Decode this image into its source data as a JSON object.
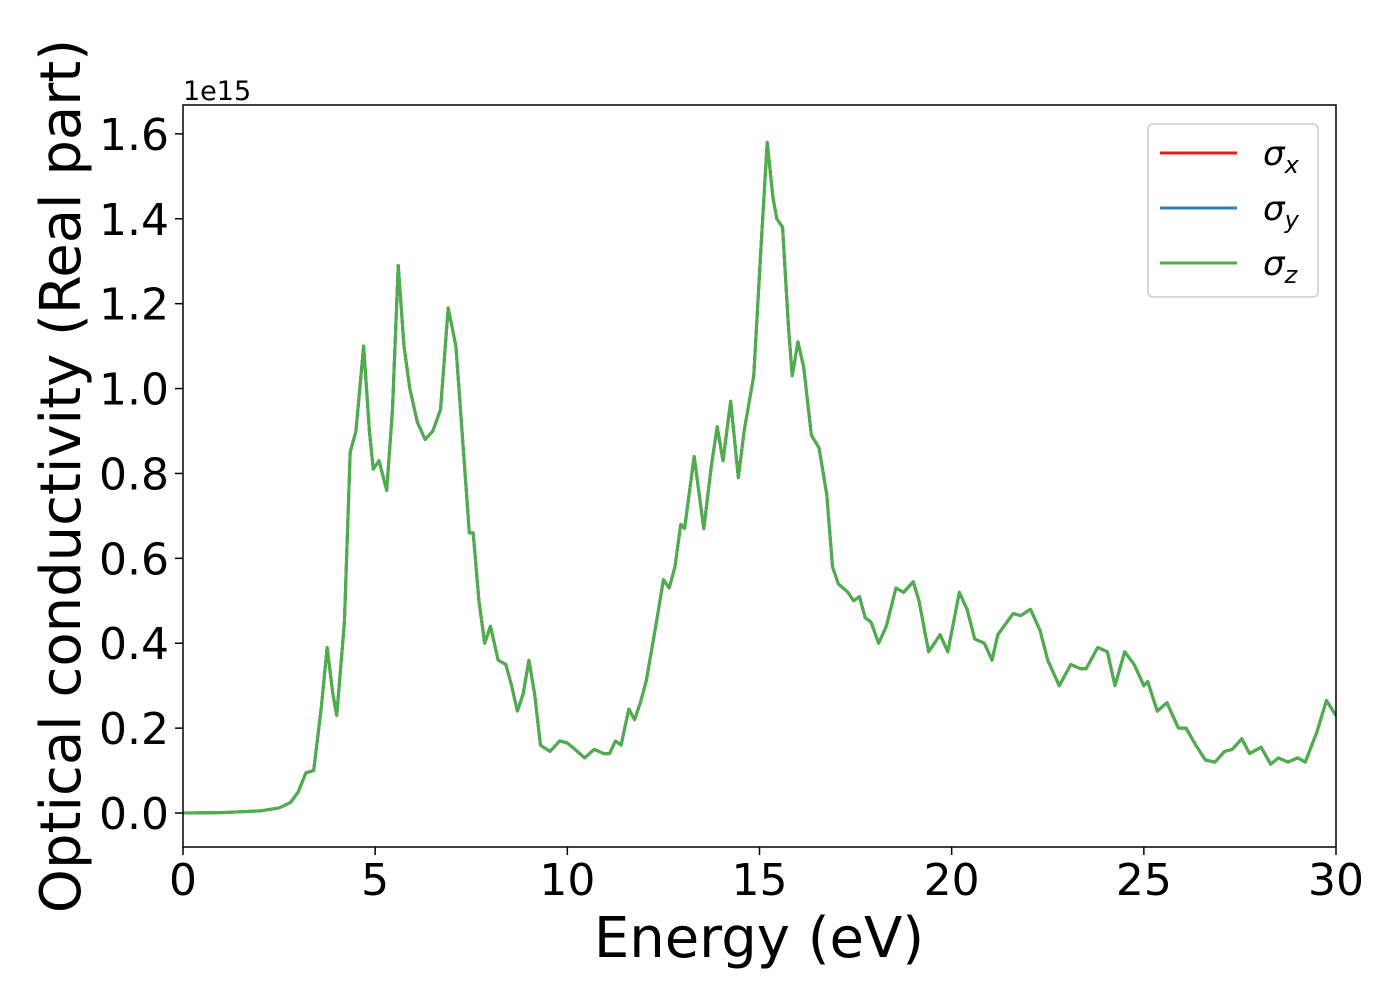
{
  "chart_data": {
    "type": "line",
    "xlabel": "Energy (eV)",
    "ylabel": "Optical conductivity (Real part)",
    "offset_text": "1e15",
    "x": [
      0,
      1,
      2,
      2.5,
      2.8,
      3.0,
      3.2,
      3.4,
      3.6,
      3.75,
      3.9,
      4.0,
      4.2,
      4.35,
      4.5,
      4.6,
      4.7,
      4.85,
      4.95,
      5.1,
      5.3,
      5.45,
      5.6,
      5.75,
      5.9,
      6.1,
      6.3,
      6.5,
      6.7,
      6.9,
      7.1,
      7.3,
      7.45,
      7.55,
      7.7,
      7.85,
      8.0,
      8.2,
      8.4,
      8.55,
      8.7,
      8.85,
      9.0,
      9.15,
      9.3,
      9.55,
      9.8,
      10.0,
      10.2,
      10.45,
      10.7,
      10.95,
      11.1,
      11.25,
      11.4,
      11.6,
      11.75,
      11.9,
      12.05,
      12.3,
      12.5,
      12.65,
      12.8,
      12.95,
      13.05,
      13.3,
      13.55,
      13.75,
      13.9,
      14.05,
      14.25,
      14.45,
      14.6,
      14.85,
      15.05,
      15.2,
      15.35,
      15.45,
      15.6,
      15.75,
      15.85,
      16.0,
      16.15,
      16.35,
      16.55,
      16.75,
      16.9,
      17.05,
      17.3,
      17.45,
      17.6,
      17.75,
      17.9,
      18.1,
      18.3,
      18.55,
      18.75,
      19.0,
      19.15,
      19.4,
      19.7,
      19.9,
      20.2,
      20.4,
      20.6,
      20.85,
      21.05,
      21.2,
      21.6,
      21.8,
      22.05,
      22.3,
      22.5,
      22.8,
      23.1,
      23.35,
      23.5,
      23.8,
      24.05,
      24.25,
      24.5,
      24.75,
      25.0,
      25.1,
      25.35,
      25.6,
      25.9,
      26.1,
      26.35,
      26.6,
      26.85,
      27.1,
      27.3,
      27.55,
      27.75,
      28.05,
      28.3,
      28.5,
      28.75,
      29.0,
      29.2,
      29.5,
      29.75,
      30
    ],
    "series": [
      {
        "name": "σx",
        "color": "#e41a1c",
        "values": [
          0,
          0.001,
          0.005,
          0.012,
          0.025,
          0.05,
          0.095,
          0.1,
          0.25,
          0.39,
          0.28,
          0.23,
          0.45,
          0.85,
          0.9,
          1.0,
          1.1,
          0.9,
          0.81,
          0.83,
          0.76,
          0.95,
          1.29,
          1.1,
          1.0,
          0.92,
          0.88,
          0.9,
          0.95,
          1.19,
          1.1,
          0.85,
          0.66,
          0.66,
          0.5,
          0.4,
          0.44,
          0.36,
          0.35,
          0.3,
          0.24,
          0.28,
          0.36,
          0.28,
          0.16,
          0.145,
          0.17,
          0.165,
          0.15,
          0.13,
          0.15,
          0.14,
          0.14,
          0.17,
          0.16,
          0.245,
          0.22,
          0.26,
          0.31,
          0.44,
          0.55,
          0.53,
          0.58,
          0.68,
          0.67,
          0.84,
          0.67,
          0.82,
          0.91,
          0.83,
          0.97,
          0.79,
          0.9,
          1.03,
          1.35,
          1.58,
          1.45,
          1.4,
          1.38,
          1.15,
          1.03,
          1.11,
          1.05,
          0.89,
          0.86,
          0.75,
          0.58,
          0.54,
          0.52,
          0.5,
          0.51,
          0.46,
          0.45,
          0.4,
          0.44,
          0.53,
          0.52,
          0.545,
          0.5,
          0.38,
          0.42,
          0.38,
          0.52,
          0.48,
          0.41,
          0.4,
          0.36,
          0.42,
          0.47,
          0.465,
          0.48,
          0.43,
          0.36,
          0.3,
          0.35,
          0.34,
          0.34,
          0.39,
          0.38,
          0.3,
          0.38,
          0.35,
          0.3,
          0.31,
          0.24,
          0.26,
          0.2,
          0.2,
          0.16,
          0.125,
          0.12,
          0.145,
          0.15,
          0.175,
          0.14,
          0.155,
          0.115,
          0.13,
          0.12,
          0.13,
          0.12,
          0.19,
          0.265,
          0.23
        ]
      },
      {
        "name": "σy",
        "color": "#377eb8",
        "values": [
          0,
          0.001,
          0.005,
          0.012,
          0.025,
          0.05,
          0.095,
          0.1,
          0.25,
          0.39,
          0.28,
          0.23,
          0.45,
          0.85,
          0.9,
          1.0,
          1.1,
          0.9,
          0.81,
          0.83,
          0.76,
          0.95,
          1.29,
          1.1,
          1.0,
          0.92,
          0.88,
          0.9,
          0.95,
          1.19,
          1.1,
          0.85,
          0.66,
          0.66,
          0.5,
          0.4,
          0.44,
          0.36,
          0.35,
          0.3,
          0.24,
          0.28,
          0.36,
          0.28,
          0.16,
          0.145,
          0.17,
          0.165,
          0.15,
          0.13,
          0.15,
          0.14,
          0.14,
          0.17,
          0.16,
          0.245,
          0.22,
          0.26,
          0.31,
          0.44,
          0.55,
          0.53,
          0.58,
          0.68,
          0.67,
          0.84,
          0.67,
          0.82,
          0.91,
          0.83,
          0.97,
          0.79,
          0.9,
          1.03,
          1.35,
          1.58,
          1.45,
          1.4,
          1.38,
          1.15,
          1.03,
          1.11,
          1.05,
          0.89,
          0.86,
          0.75,
          0.58,
          0.54,
          0.52,
          0.5,
          0.51,
          0.46,
          0.45,
          0.4,
          0.44,
          0.53,
          0.52,
          0.545,
          0.5,
          0.38,
          0.42,
          0.38,
          0.52,
          0.48,
          0.41,
          0.4,
          0.36,
          0.42,
          0.47,
          0.465,
          0.48,
          0.43,
          0.36,
          0.3,
          0.35,
          0.34,
          0.34,
          0.39,
          0.38,
          0.3,
          0.38,
          0.35,
          0.3,
          0.31,
          0.24,
          0.26,
          0.2,
          0.2,
          0.16,
          0.125,
          0.12,
          0.145,
          0.15,
          0.175,
          0.14,
          0.155,
          0.115,
          0.13,
          0.12,
          0.13,
          0.12,
          0.19,
          0.265,
          0.23
        ]
      },
      {
        "name": "σz",
        "color": "#4daf4a",
        "values": [
          0,
          0.001,
          0.005,
          0.012,
          0.025,
          0.05,
          0.095,
          0.1,
          0.25,
          0.39,
          0.28,
          0.23,
          0.45,
          0.85,
          0.9,
          1.0,
          1.1,
          0.9,
          0.81,
          0.83,
          0.76,
          0.95,
          1.29,
          1.1,
          1.0,
          0.92,
          0.88,
          0.9,
          0.95,
          1.19,
          1.1,
          0.85,
          0.66,
          0.66,
          0.5,
          0.4,
          0.44,
          0.36,
          0.35,
          0.3,
          0.24,
          0.28,
          0.36,
          0.28,
          0.16,
          0.145,
          0.17,
          0.165,
          0.15,
          0.13,
          0.15,
          0.14,
          0.14,
          0.17,
          0.16,
          0.245,
          0.22,
          0.26,
          0.31,
          0.44,
          0.55,
          0.53,
          0.58,
          0.68,
          0.67,
          0.84,
          0.67,
          0.82,
          0.91,
          0.83,
          0.97,
          0.79,
          0.9,
          1.03,
          1.35,
          1.58,
          1.45,
          1.4,
          1.38,
          1.15,
          1.03,
          1.11,
          1.05,
          0.89,
          0.86,
          0.75,
          0.58,
          0.54,
          0.52,
          0.5,
          0.51,
          0.46,
          0.45,
          0.4,
          0.44,
          0.53,
          0.52,
          0.545,
          0.5,
          0.38,
          0.42,
          0.38,
          0.52,
          0.48,
          0.41,
          0.4,
          0.36,
          0.42,
          0.47,
          0.465,
          0.48,
          0.43,
          0.36,
          0.3,
          0.35,
          0.34,
          0.34,
          0.39,
          0.38,
          0.3,
          0.38,
          0.35,
          0.3,
          0.31,
          0.24,
          0.26,
          0.2,
          0.2,
          0.16,
          0.125,
          0.12,
          0.145,
          0.15,
          0.175,
          0.14,
          0.155,
          0.115,
          0.13,
          0.12,
          0.13,
          0.12,
          0.19,
          0.265,
          0.23
        ]
      }
    ],
    "xlim": [
      0,
      30
    ],
    "xticks": [
      0,
      5,
      10,
      15,
      20,
      25,
      30
    ],
    "ylim": [
      -0.08,
      1.668
    ],
    "yticks": [
      {
        "value": 0,
        "label": "0.0"
      },
      0.2,
      0.4,
      0.6,
      0.8,
      {
        "value": 1,
        "label": "1.0"
      },
      1.2,
      1.4,
      1.6
    ],
    "grid": false,
    "legend": "upper right"
  }
}
